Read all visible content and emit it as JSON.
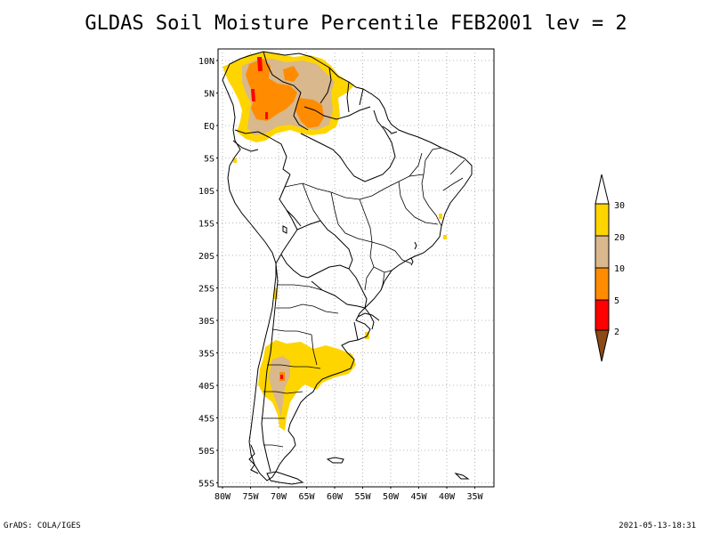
{
  "title": "GLDAS Soil Moisture Percentile FEB2001 lev = 2",
  "footer": {
    "left": "GrADS: COLA/IGES",
    "right": "2021-05-13-18:31"
  },
  "map": {
    "lat_ticks": [
      "10N",
      "5N",
      "EQ",
      "5S",
      "10S",
      "15S",
      "20S",
      "25S",
      "30S",
      "35S",
      "40S",
      "45S",
      "50S",
      "55S"
    ],
    "lon_ticks": [
      "80W",
      "75W",
      "70W",
      "65W",
      "60W",
      "55W",
      "50W",
      "45W",
      "40W",
      "35W"
    ],
    "grid": true
  },
  "legend": {
    "labels": [
      "30",
      "20",
      "10",
      "5",
      "2"
    ],
    "colors": {
      "above_30": "#ffffff",
      "band_20_30": "#ffd500",
      "band_10_20": "#d8b88c",
      "band_5_10": "#ff8c00",
      "band_2_5": "#ff0000",
      "below_2": "#8c4a14"
    }
  },
  "colors": {
    "coast": "#000000",
    "gold": "#ffd500",
    "tan": "#d8b88c",
    "orange": "#ff8c00",
    "red": "#ff0000",
    "brown": "#8c4a14",
    "grid": "#a0a0a0"
  }
}
